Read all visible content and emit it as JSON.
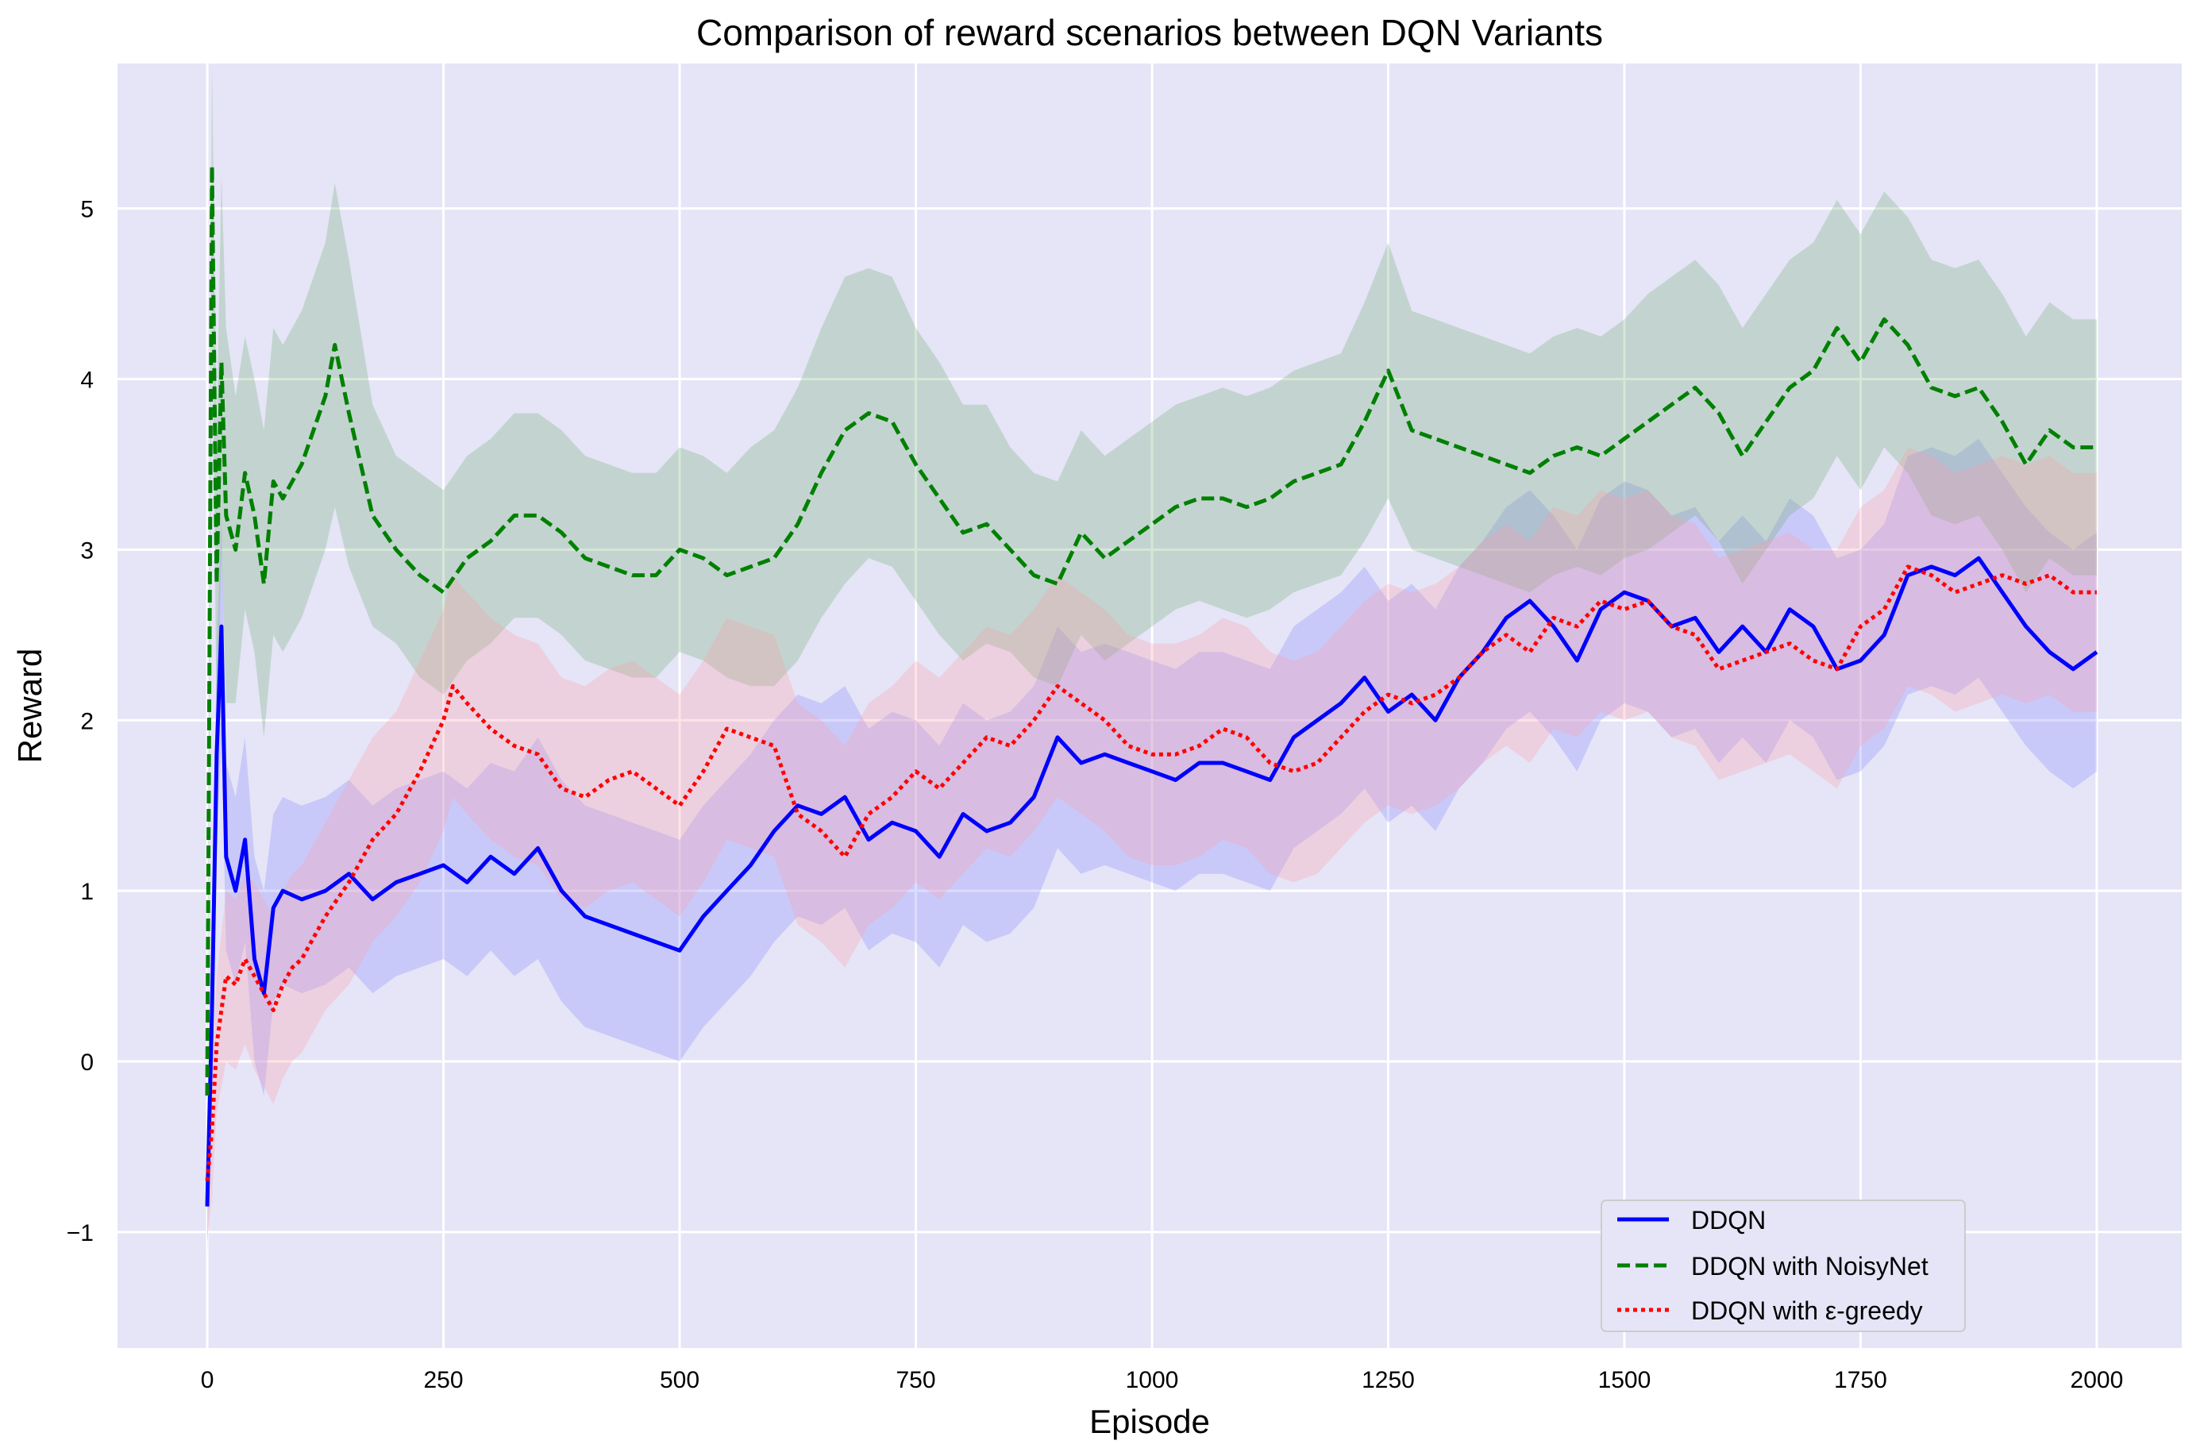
{
  "chart_data": {
    "type": "line",
    "title": "Comparison of reward scenarios between DQN Variants",
    "xlabel": "Episode",
    "ylabel": "Reward",
    "xlim": [
      -95,
      2090
    ],
    "ylim": [
      -1.68,
      5.85
    ],
    "grid": true,
    "legend_position": "lower-right",
    "x_ticks": [
      0,
      250,
      500,
      750,
      1000,
      1250,
      1500,
      1750,
      2000
    ],
    "y_ticks": [
      -1,
      0,
      1,
      2,
      3,
      4,
      5
    ],
    "x_tick_labels": [
      "0",
      "250",
      "500",
      "750",
      "1000",
      "1250",
      "1500",
      "1750",
      "2000"
    ],
    "y_tick_labels": [
      "−1",
      "0",
      "1",
      "2",
      "3",
      "4",
      "5"
    ],
    "series": [
      {
        "name": "DDQN",
        "color": "#0000ff",
        "style": "solid",
        "band_color": "#8080ff",
        "x": [
          0,
          5,
          10,
          15,
          20,
          30,
          40,
          50,
          60,
          70,
          80,
          100,
          125,
          150,
          175,
          200,
          225,
          250,
          275,
          300,
          325,
          350,
          375,
          400,
          425,
          450,
          475,
          500,
          525,
          550,
          575,
          600,
          625,
          650,
          675,
          700,
          725,
          750,
          775,
          800,
          825,
          850,
          875,
          900,
          925,
          950,
          975,
          1000,
          1025,
          1050,
          1075,
          1100,
          1125,
          1150,
          1175,
          1200,
          1225,
          1250,
          1275,
          1300,
          1325,
          1350,
          1375,
          1400,
          1425,
          1450,
          1475,
          1500,
          1525,
          1550,
          1575,
          1600,
          1625,
          1650,
          1675,
          1700,
          1725,
          1750,
          1775,
          1800,
          1825,
          1850,
          1875,
          1900,
          1925,
          1950,
          1975,
          2000
        ],
        "y": [
          -0.85,
          0.3,
          1.8,
          2.55,
          1.2,
          1.0,
          1.3,
          0.6,
          0.4,
          0.9,
          1.0,
          0.95,
          1.0,
          1.1,
          0.95,
          1.05,
          1.1,
          1.15,
          1.05,
          1.2,
          1.1,
          1.25,
          1.0,
          0.85,
          0.8,
          0.75,
          0.7,
          0.65,
          0.85,
          1.0,
          1.15,
          1.35,
          1.5,
          1.45,
          1.55,
          1.3,
          1.4,
          1.35,
          1.2,
          1.45,
          1.35,
          1.4,
          1.55,
          1.9,
          1.75,
          1.8,
          1.75,
          1.7,
          1.65,
          1.75,
          1.75,
          1.7,
          1.65,
          1.9,
          2.0,
          2.1,
          2.25,
          2.05,
          2.15,
          2.0,
          2.25,
          2.4,
          2.6,
          2.7,
          2.55,
          2.35,
          2.65,
          2.75,
          2.7,
          2.55,
          2.6,
          2.4,
          2.55,
          2.4,
          2.65,
          2.55,
          2.3,
          2.35,
          2.5,
          2.85,
          2.9,
          2.85,
          2.95,
          2.75,
          2.55,
          2.4,
          2.3,
          2.4
        ],
        "band_halfwidth": [
          0.3,
          0.5,
          0.6,
          0.65,
          0.55,
          0.55,
          0.6,
          0.6,
          0.6,
          0.55,
          0.55,
          0.55,
          0.55,
          0.55,
          0.55,
          0.55,
          0.55,
          0.55,
          0.55,
          0.55,
          0.6,
          0.65,
          0.65,
          0.65,
          0.65,
          0.65,
          0.65,
          0.65,
          0.65,
          0.65,
          0.65,
          0.65,
          0.65,
          0.65,
          0.65,
          0.65,
          0.65,
          0.65,
          0.65,
          0.65,
          0.65,
          0.65,
          0.65,
          0.65,
          0.65,
          0.65,
          0.65,
          0.65,
          0.65,
          0.65,
          0.65,
          0.65,
          0.65,
          0.65,
          0.65,
          0.65,
          0.65,
          0.65,
          0.65,
          0.65,
          0.65,
          0.65,
          0.65,
          0.65,
          0.65,
          0.65,
          0.65,
          0.65,
          0.65,
          0.65,
          0.65,
          0.65,
          0.65,
          0.65,
          0.65,
          0.65,
          0.65,
          0.65,
          0.65,
          0.7,
          0.7,
          0.7,
          0.7,
          0.7,
          0.7,
          0.7,
          0.7,
          0.7
        ]
      },
      {
        "name": "DDQN with NoisyNet",
        "color": "#008000",
        "style": "dashed",
        "band_color": "#6aa86a",
        "x": [
          0,
          5,
          10,
          15,
          20,
          30,
          40,
          50,
          60,
          70,
          80,
          100,
          125,
          135,
          150,
          175,
          200,
          225,
          250,
          275,
          300,
          325,
          350,
          375,
          400,
          425,
          450,
          475,
          500,
          525,
          550,
          575,
          600,
          625,
          650,
          675,
          700,
          725,
          750,
          775,
          800,
          825,
          850,
          875,
          900,
          925,
          950,
          975,
          1000,
          1025,
          1050,
          1075,
          1100,
          1125,
          1150,
          1175,
          1200,
          1225,
          1250,
          1275,
          1300,
          1325,
          1350,
          1375,
          1400,
          1425,
          1450,
          1475,
          1500,
          1525,
          1550,
          1575,
          1600,
          1625,
          1650,
          1675,
          1700,
          1725,
          1750,
          1775,
          1800,
          1825,
          1850,
          1875,
          1900,
          1925,
          1950,
          1975,
          2000
        ],
        "y": [
          -0.2,
          5.25,
          2.8,
          4.1,
          3.2,
          3.0,
          3.45,
          3.2,
          2.8,
          3.4,
          3.3,
          3.5,
          3.9,
          4.2,
          3.8,
          3.2,
          3.0,
          2.85,
          2.75,
          2.95,
          3.05,
          3.2,
          3.2,
          3.1,
          2.95,
          2.9,
          2.85,
          2.85,
          3.0,
          2.95,
          2.85,
          2.9,
          2.95,
          3.15,
          3.45,
          3.7,
          3.8,
          3.75,
          3.5,
          3.3,
          3.1,
          3.15,
          3.0,
          2.85,
          2.8,
          3.1,
          2.95,
          3.05,
          3.15,
          3.25,
          3.3,
          3.3,
          3.25,
          3.3,
          3.4,
          3.45,
          3.5,
          3.75,
          4.05,
          3.7,
          3.65,
          3.6,
          3.55,
          3.5,
          3.45,
          3.55,
          3.6,
          3.55,
          3.65,
          3.75,
          3.85,
          3.95,
          3.8,
          3.55,
          3.75,
          3.95,
          4.05,
          4.3,
          4.1,
          4.35,
          4.2,
          3.95,
          3.9,
          3.95,
          3.75,
          3.5,
          3.7,
          3.6,
          3.6
        ],
        "band_halfwidth": [
          0.3,
          0.6,
          0.9,
          1.1,
          1.1,
          0.9,
          0.8,
          0.8,
          0.9,
          0.9,
          0.9,
          0.9,
          0.9,
          0.95,
          0.9,
          0.65,
          0.55,
          0.6,
          0.6,
          0.6,
          0.6,
          0.6,
          0.6,
          0.6,
          0.6,
          0.6,
          0.6,
          0.6,
          0.6,
          0.6,
          0.6,
          0.7,
          0.75,
          0.8,
          0.85,
          0.9,
          0.85,
          0.85,
          0.8,
          0.8,
          0.75,
          0.7,
          0.6,
          0.6,
          0.6,
          0.6,
          0.6,
          0.6,
          0.6,
          0.6,
          0.6,
          0.65,
          0.65,
          0.65,
          0.65,
          0.65,
          0.65,
          0.7,
          0.75,
          0.7,
          0.7,
          0.7,
          0.7,
          0.7,
          0.7,
          0.7,
          0.7,
          0.7,
          0.7,
          0.75,
          0.75,
          0.75,
          0.75,
          0.75,
          0.75,
          0.75,
          0.75,
          0.75,
          0.75,
          0.75,
          0.75,
          0.75,
          0.75,
          0.75,
          0.75,
          0.75,
          0.75,
          0.75,
          0.75
        ]
      },
      {
        "name": "DDQN with ε-greedy",
        "color": "#ff0000",
        "style": "dotted",
        "band_color": "#ff9aa6",
        "x": [
          0,
          5,
          10,
          15,
          20,
          30,
          40,
          50,
          60,
          70,
          80,
          90,
          100,
          110,
          125,
          150,
          175,
          200,
          225,
          250,
          260,
          275,
          300,
          325,
          350,
          375,
          400,
          425,
          450,
          475,
          500,
          525,
          550,
          575,
          600,
          625,
          650,
          675,
          700,
          725,
          750,
          775,
          800,
          825,
          850,
          875,
          900,
          925,
          950,
          975,
          1000,
          1025,
          1050,
          1075,
          1100,
          1125,
          1150,
          1175,
          1200,
          1225,
          1250,
          1275,
          1300,
          1325,
          1350,
          1375,
          1400,
          1425,
          1450,
          1475,
          1500,
          1525,
          1550,
          1575,
          1600,
          1625,
          1650,
          1675,
          1700,
          1725,
          1750,
          1775,
          1800,
          1825,
          1850,
          1875,
          1900,
          1925,
          1950,
          1975,
          2000
        ],
        "y": [
          -0.7,
          -0.4,
          0.1,
          0.3,
          0.5,
          0.45,
          0.6,
          0.5,
          0.4,
          0.3,
          0.45,
          0.55,
          0.6,
          0.7,
          0.85,
          1.05,
          1.3,
          1.45,
          1.7,
          2.0,
          2.2,
          2.1,
          1.95,
          1.85,
          1.8,
          1.6,
          1.55,
          1.65,
          1.7,
          1.6,
          1.5,
          1.7,
          1.95,
          1.9,
          1.85,
          1.45,
          1.35,
          1.2,
          1.45,
          1.55,
          1.7,
          1.6,
          1.75,
          1.9,
          1.85,
          2.0,
          2.2,
          2.1,
          2.0,
          1.85,
          1.8,
          1.8,
          1.85,
          1.95,
          1.9,
          1.75,
          1.7,
          1.75,
          1.9,
          2.05,
          2.15,
          2.1,
          2.15,
          2.25,
          2.4,
          2.5,
          2.4,
          2.6,
          2.55,
          2.7,
          2.65,
          2.7,
          2.55,
          2.5,
          2.3,
          2.35,
          2.4,
          2.45,
          2.35,
          2.3,
          2.55,
          2.65,
          2.9,
          2.85,
          2.75,
          2.8,
          2.85,
          2.8,
          2.85,
          2.75,
          2.75
        ],
        "band_halfwidth": [
          0.35,
          0.4,
          0.4,
          0.45,
          0.5,
          0.5,
          0.5,
          0.55,
          0.55,
          0.55,
          0.55,
          0.55,
          0.55,
          0.55,
          0.55,
          0.6,
          0.6,
          0.6,
          0.65,
          0.65,
          0.65,
          0.65,
          0.65,
          0.65,
          0.65,
          0.65,
          0.65,
          0.65,
          0.65,
          0.65,
          0.65,
          0.65,
          0.65,
          0.65,
          0.65,
          0.65,
          0.65,
          0.65,
          0.65,
          0.65,
          0.65,
          0.65,
          0.65,
          0.65,
          0.65,
          0.65,
          0.65,
          0.65,
          0.65,
          0.65,
          0.65,
          0.65,
          0.65,
          0.65,
          0.65,
          0.65,
          0.65,
          0.65,
          0.65,
          0.65,
          0.65,
          0.65,
          0.65,
          0.65,
          0.65,
          0.65,
          0.65,
          0.65,
          0.65,
          0.65,
          0.65,
          0.65,
          0.65,
          0.65,
          0.65,
          0.65,
          0.65,
          0.65,
          0.65,
          0.7,
          0.7,
          0.7,
          0.7,
          0.7,
          0.7,
          0.7,
          0.7,
          0.7,
          0.7,
          0.7,
          0.7
        ]
      }
    ]
  },
  "colors": {
    "plot_background": "#e5e5f7",
    "grid": "#ffffff"
  }
}
